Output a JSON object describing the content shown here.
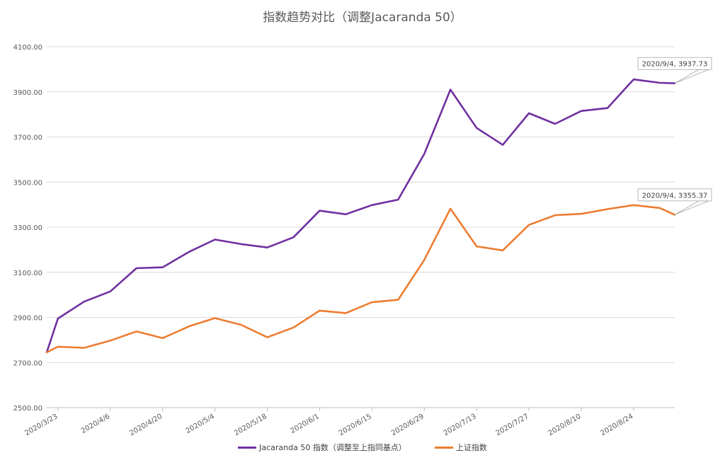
{
  "chart_data": {
    "type": "line",
    "title": "指数趋势对比（调整Jacaranda 50）",
    "xlabel": "",
    "ylabel": "",
    "ylim": [
      2500,
      4100
    ],
    "y_ticks": [
      "2500.00",
      "2700.00",
      "2900.00",
      "3100.00",
      "3300.00",
      "3500.00",
      "3700.00",
      "3900.00",
      "4100.00"
    ],
    "x_ticks": [
      "2020/3/23",
      "2020/4/6",
      "2020/4/20",
      "2020/5/4",
      "2020/5/18",
      "2020/6/1",
      "2020/6/15",
      "2020/6/29",
      "2020/7/13",
      "2020/7/27",
      "2020/8/10",
      "2020/8/24"
    ],
    "grid": "horizontal",
    "legend_position": "bottom",
    "x": [
      "2020/3/20",
      "2020/3/23",
      "2020/3/30",
      "2020/4/6",
      "2020/4/13",
      "2020/4/20",
      "2020/4/27",
      "2020/5/4",
      "2020/5/11",
      "2020/5/18",
      "2020/5/25",
      "2020/6/1",
      "2020/6/8",
      "2020/6/15",
      "2020/6/22",
      "2020/6/29",
      "2020/7/6",
      "2020/7/13",
      "2020/7/20",
      "2020/7/27",
      "2020/8/3",
      "2020/8/10",
      "2020/8/17",
      "2020/8/24",
      "2020/8/31",
      "2020/9/4"
    ],
    "series": [
      {
        "name": "Jacaranda 50 指数（调整至上指同基点）",
        "color": "#7030a0",
        "values": [
          2745,
          2895,
          2970,
          3015,
          3118,
          3122,
          3190,
          3245,
          3225,
          3210,
          3255,
          3373,
          3357,
          3398,
          3422,
          3625,
          3910,
          3740,
          3665,
          3805,
          3758,
          3815,
          3828,
          3955,
          3940,
          3937.73
        ]
      },
      {
        "name": "上证指数",
        "color": "#ed7d31",
        "values": [
          2745,
          2770,
          2765,
          2797,
          2838,
          2808,
          2860,
          2897,
          2867,
          2812,
          2855,
          2930,
          2919,
          2967,
          2978,
          3155,
          3382,
          3215,
          3197,
          3310,
          3353,
          3359,
          3380,
          3398,
          3385,
          3355.37
        ]
      }
    ],
    "annotations": [
      {
        "series": 0,
        "text": "2020/9/4, 3937.73"
      },
      {
        "series": 1,
        "text": "2020/9/4, 3355.37"
      }
    ]
  }
}
